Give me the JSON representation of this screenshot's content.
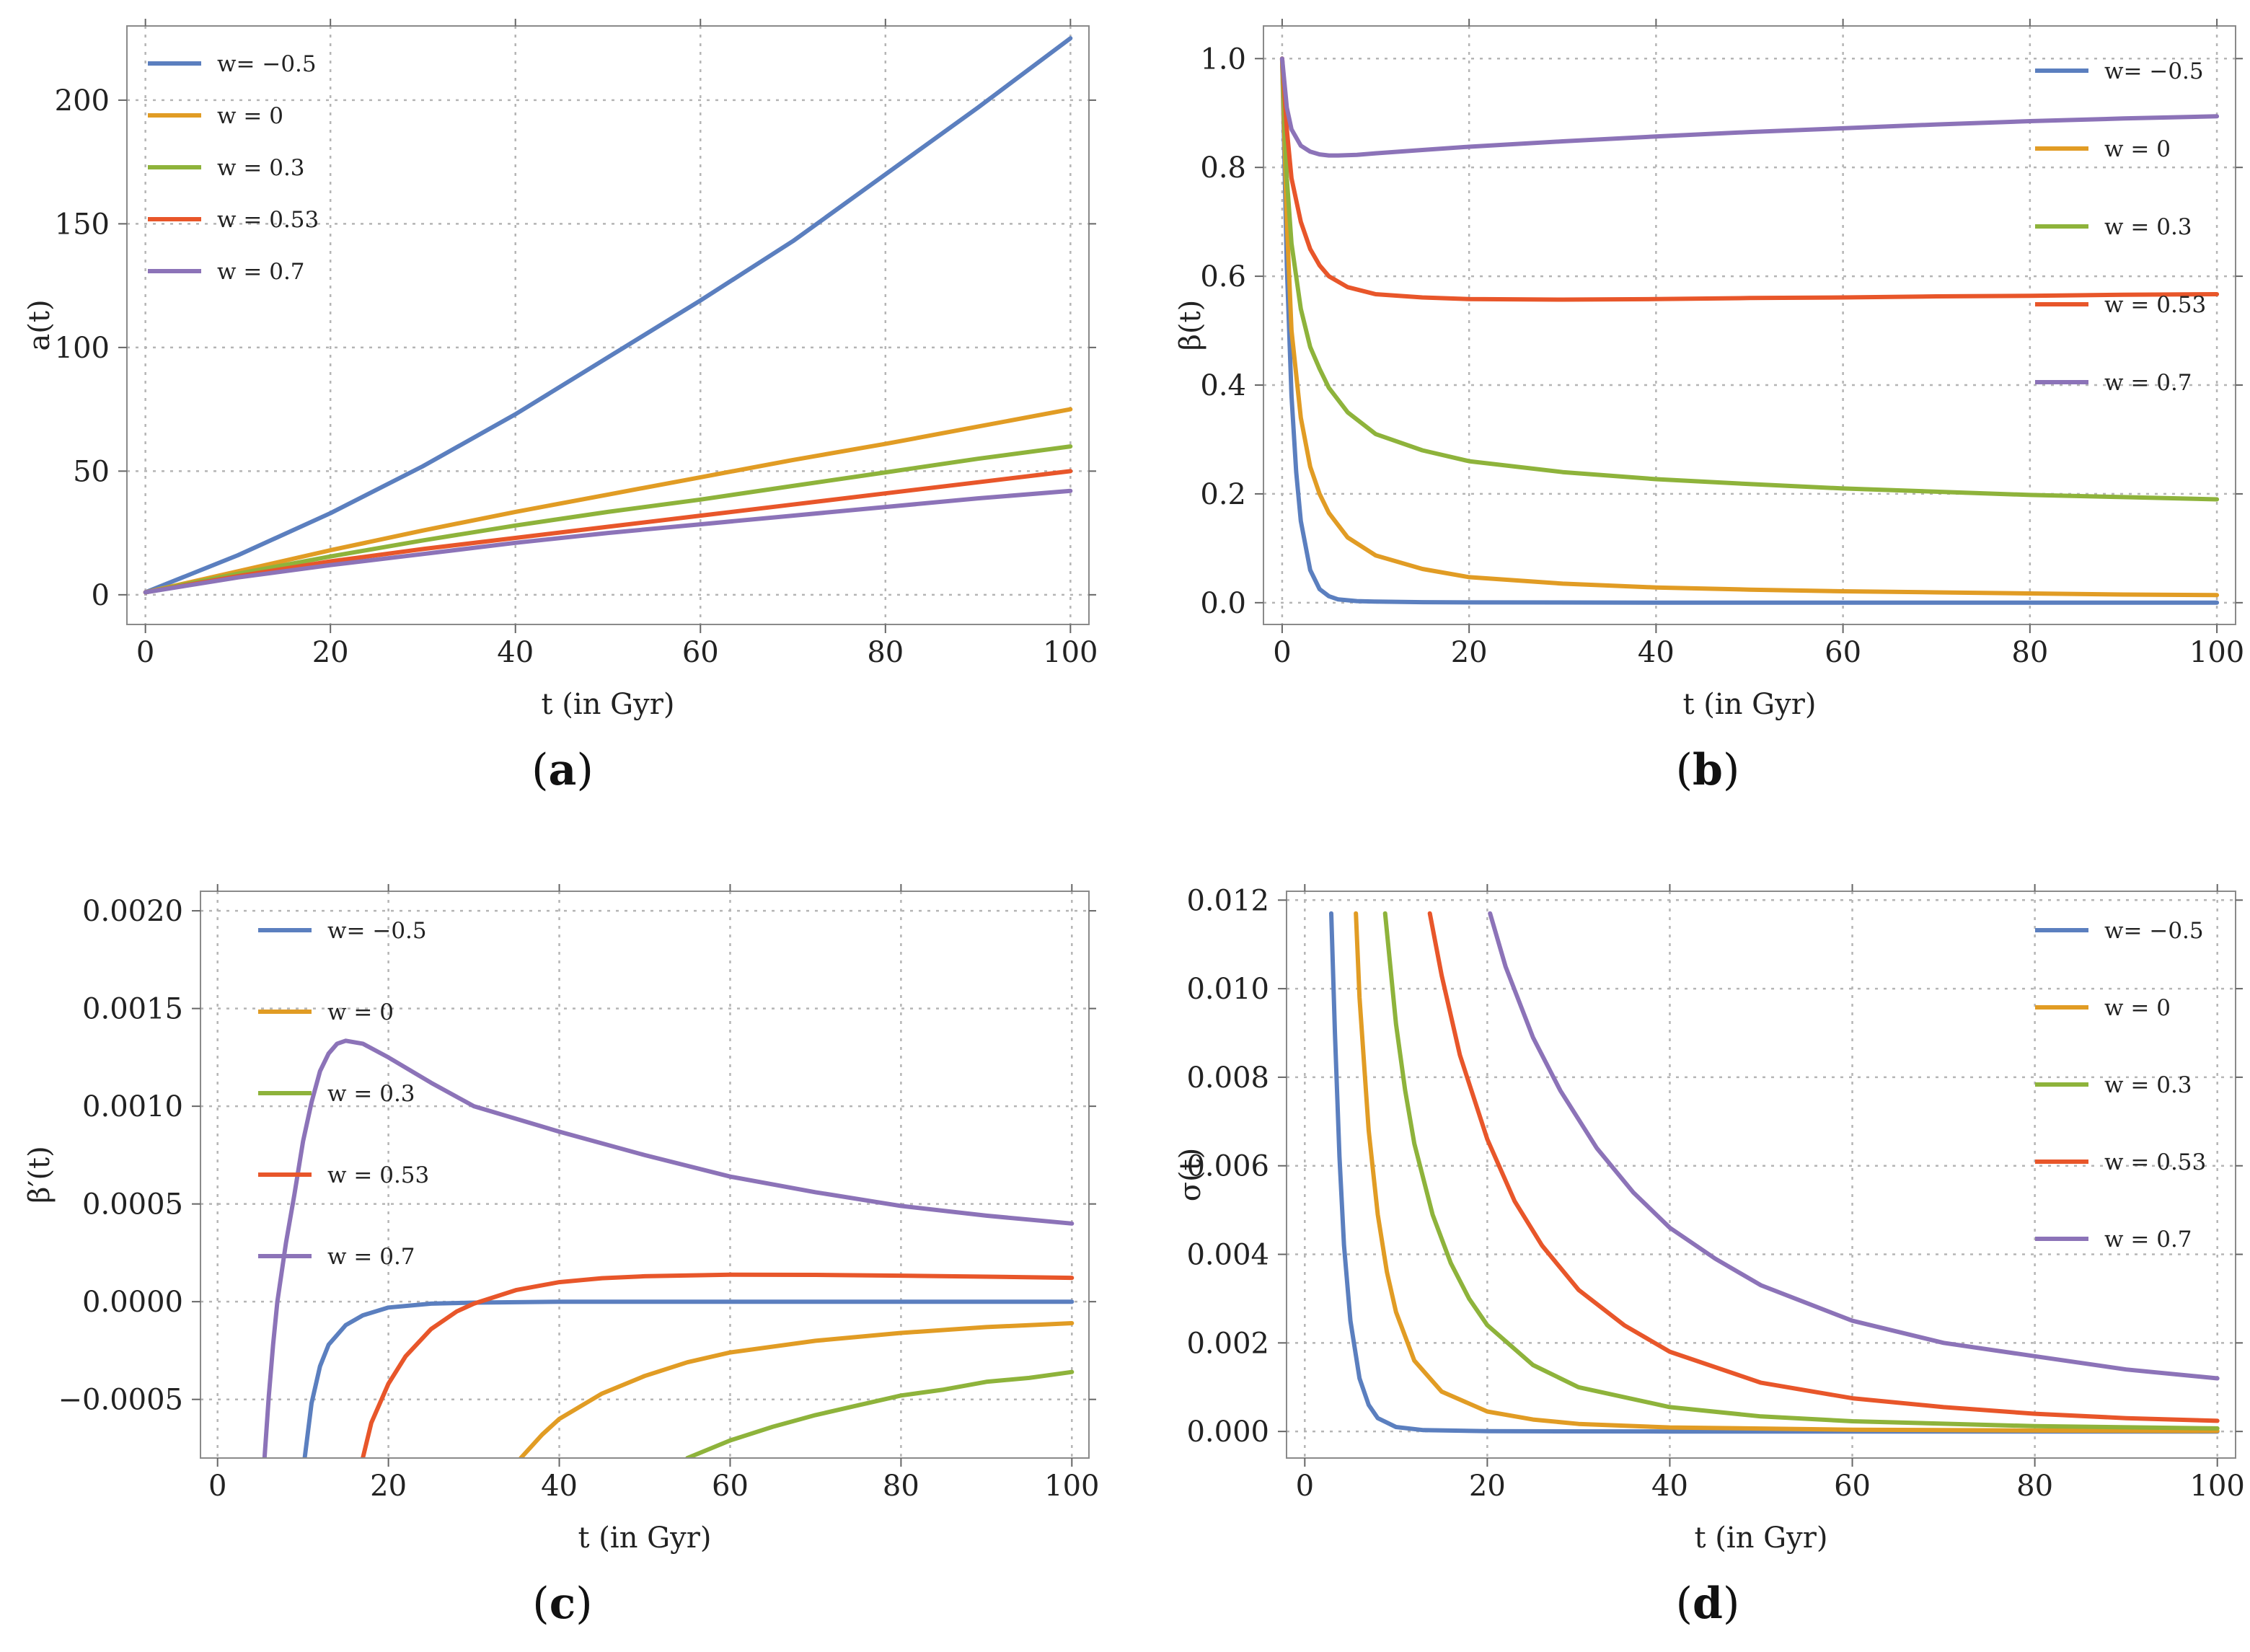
{
  "colors": {
    "blue": "#5B7FBF",
    "orange": "#E19C24",
    "green": "#8EB33B",
    "red": "#E8562A",
    "purple": "#8C73B8"
  },
  "legend_labels": [
    "w= −0.5",
    "w = 0",
    "w = 0.3",
    "w = 0.53",
    "w = 0.7"
  ],
  "chart_data": [
    {
      "id": "a",
      "panel_label": "a",
      "type": "line",
      "xlabel": "t (in Gyr)",
      "ylabel": "a(t)",
      "xlim": [
        -2,
        102
      ],
      "ylim": [
        -12,
        230
      ],
      "xticks": [
        0,
        20,
        40,
        60,
        80,
        100
      ],
      "xtick_labels": [
        "0",
        "20",
        "40",
        "60",
        "80",
        "100"
      ],
      "yticks": [
        0,
        50,
        100,
        150,
        200
      ],
      "ytick_labels": [
        "0",
        "50",
        "100",
        "150",
        "200"
      ],
      "grid": true,
      "legend_position": "top-left",
      "series": [
        {
          "name": "w= −0.5",
          "color": "#5B7FBF",
          "x": [
            0,
            10,
            20,
            30,
            40,
            50,
            60,
            70,
            80,
            90,
            100
          ],
          "y": [
            1,
            16,
            33,
            52,
            73,
            96,
            119,
            143,
            170,
            197,
            225
          ]
        },
        {
          "name": "w = 0",
          "color": "#E19C24",
          "x": [
            0,
            10,
            20,
            30,
            40,
            50,
            60,
            70,
            80,
            90,
            100
          ],
          "y": [
            1,
            9.5,
            18,
            26,
            33.5,
            40.5,
            47.5,
            54.5,
            61,
            68,
            75
          ]
        },
        {
          "name": "w = 0.3",
          "color": "#8EB33B",
          "x": [
            0,
            10,
            20,
            30,
            40,
            50,
            60,
            70,
            80,
            90,
            100
          ],
          "y": [
            1,
            8.5,
            15.5,
            22,
            28,
            33.5,
            38.5,
            44,
            49.5,
            55,
            60
          ]
        },
        {
          "name": "w = 0.53",
          "color": "#E8562A",
          "x": [
            0,
            10,
            20,
            30,
            40,
            50,
            60,
            70,
            80,
            90,
            100
          ],
          "y": [
            1,
            7.5,
            13.5,
            18.5,
            23,
            27.5,
            32,
            36.5,
            41,
            45.5,
            50
          ]
        },
        {
          "name": "w = 0.7",
          "color": "#8C73B8",
          "x": [
            0,
            10,
            20,
            30,
            40,
            50,
            60,
            70,
            80,
            90,
            100
          ],
          "y": [
            1,
            7,
            12,
            16.5,
            21,
            25,
            28.5,
            32,
            35.5,
            39,
            42
          ]
        }
      ]
    },
    {
      "id": "b",
      "panel_label": "b",
      "type": "line",
      "xlabel": "t (in Gyr)",
      "ylabel": "β(t)",
      "xlim": [
        -2,
        102
      ],
      "ylim": [
        -0.04,
        1.06
      ],
      "xticks": [
        0,
        20,
        40,
        60,
        80,
        100
      ],
      "xtick_labels": [
        "0",
        "20",
        "40",
        "60",
        "80",
        "100"
      ],
      "yticks": [
        0,
        0.2,
        0.4,
        0.6,
        0.8,
        1.0
      ],
      "ytick_labels": [
        "0.0",
        "0.2",
        "0.4",
        "0.6",
        "0.8",
        "1.0"
      ],
      "grid": true,
      "legend_position": "right",
      "series": [
        {
          "name": "w= −0.5",
          "color": "#5B7FBF",
          "x": [
            0,
            0.5,
            1,
            1.5,
            2,
            3,
            4,
            5,
            6,
            8,
            10,
            15,
            20,
            40,
            60,
            80,
            100
          ],
          "y": [
            1,
            0.62,
            0.38,
            0.24,
            0.15,
            0.06,
            0.025,
            0.012,
            0.006,
            0.003,
            0.002,
            0.001,
            0.0005,
            0.0002,
            0.0001,
            0.0001,
            0
          ]
        },
        {
          "name": "w = 0",
          "color": "#E19C24",
          "x": [
            0,
            0.5,
            1,
            2,
            3,
            4,
            5,
            7,
            10,
            15,
            20,
            30,
            40,
            50,
            60,
            70,
            80,
            90,
            100
          ],
          "y": [
            1,
            0.7,
            0.5,
            0.34,
            0.25,
            0.2,
            0.165,
            0.12,
            0.087,
            0.062,
            0.047,
            0.035,
            0.028,
            0.024,
            0.021,
            0.019,
            0.017,
            0.015,
            0.014
          ]
        },
        {
          "name": "w = 0.3",
          "color": "#8EB33B",
          "x": [
            0,
            0.5,
            1,
            2,
            3,
            4,
            5,
            7,
            10,
            15,
            20,
            30,
            40,
            50,
            60,
            70,
            80,
            90,
            100
          ],
          "y": [
            1,
            0.78,
            0.66,
            0.54,
            0.47,
            0.43,
            0.395,
            0.35,
            0.31,
            0.28,
            0.26,
            0.24,
            0.227,
            0.218,
            0.21,
            0.204,
            0.198,
            0.194,
            0.19
          ]
        },
        {
          "name": "w = 0.53",
          "color": "#E8562A",
          "x": [
            0,
            0.5,
            1,
            2,
            3,
            4,
            5,
            7,
            10,
            15,
            20,
            30,
            40,
            50,
            60,
            70,
            80,
            90,
            100
          ],
          "y": [
            1,
            0.87,
            0.78,
            0.7,
            0.65,
            0.62,
            0.6,
            0.58,
            0.567,
            0.561,
            0.558,
            0.557,
            0.558,
            0.56,
            0.561,
            0.563,
            0.564,
            0.566,
            0.567
          ]
        },
        {
          "name": "w = 0.7",
          "color": "#8C73B8",
          "x": [
            0,
            0.5,
            1,
            2,
            3,
            4,
            5,
            6,
            8,
            10,
            15,
            20,
            30,
            40,
            50,
            60,
            70,
            80,
            90,
            100
          ],
          "y": [
            1,
            0.91,
            0.87,
            0.84,
            0.829,
            0.824,
            0.822,
            0.822,
            0.823,
            0.826,
            0.832,
            0.838,
            0.848,
            0.857,
            0.865,
            0.872,
            0.879,
            0.885,
            0.89,
            0.894
          ]
        }
      ]
    },
    {
      "id": "c",
      "panel_label": "c",
      "type": "line",
      "xlabel": "t (in Gyr)",
      "ylabel": "β′(t)",
      "xlim": [
        -2,
        102
      ],
      "ylim": [
        -0.0008,
        0.0021
      ],
      "xticks": [
        0,
        20,
        40,
        60,
        80,
        100
      ],
      "xtick_labels": [
        "0",
        "20",
        "40",
        "60",
        "80",
        "100"
      ],
      "yticks": [
        -0.0005,
        0,
        0.0005,
        0.001,
        0.0015,
        0.002
      ],
      "ytick_labels": [
        "−0.0005",
        "0.0000",
        "0.0005",
        "0.0010",
        "0.0015",
        "0.0020"
      ],
      "grid": true,
      "legend_position": "top-left",
      "series": [
        {
          "name": "w= −0.5",
          "color": "#5B7FBF",
          "x": [
            10.2,
            11,
            12,
            13,
            15,
            17,
            20,
            25,
            30,
            40,
            60,
            80,
            100
          ],
          "y": [
            -0.0008,
            -0.00052,
            -0.00033,
            -0.00022,
            -0.00012,
            -7e-05,
            -3e-05,
            -1e-05,
            -5e-06,
            0,
            0,
            0,
            0
          ]
        },
        {
          "name": "w = 0",
          "color": "#E19C24",
          "x": [
            35.5,
            38,
            40,
            45,
            50,
            55,
            60,
            70,
            80,
            90,
            100
          ],
          "y": [
            -0.0008,
            -0.00068,
            -0.0006,
            -0.00047,
            -0.00038,
            -0.00031,
            -0.00026,
            -0.0002,
            -0.00016,
            -0.00013,
            -0.00011
          ]
        },
        {
          "name": "w = 0.3",
          "color": "#8EB33B",
          "x": [
            55,
            60,
            65,
            70,
            75,
            80,
            85,
            90,
            95,
            100
          ],
          "y": [
            -0.0008,
            -0.00071,
            -0.00064,
            -0.00058,
            -0.00053,
            -0.00048,
            -0.00045,
            -0.00041,
            -0.00039,
            -0.00036
          ]
        },
        {
          "name": "w = 0.53",
          "color": "#E8562A",
          "x": [
            17,
            18,
            20,
            22,
            25,
            28,
            30,
            35,
            40,
            45,
            50,
            60,
            70,
            80,
            90,
            100
          ],
          "y": [
            -0.0008,
            -0.00062,
            -0.00042,
            -0.00028,
            -0.00014,
            -5e-05,
            -1e-05,
            6e-05,
            0.0001,
            0.00012,
            0.00013,
            0.000138,
            0.000137,
            0.000133,
            0.000128,
            0.000122
          ]
        },
        {
          "name": "w = 0.7",
          "color": "#8C73B8",
          "x": [
            5.5,
            6,
            6.5,
            7,
            8,
            9,
            10,
            11,
            12,
            13,
            14,
            15,
            17,
            20,
            25,
            30,
            40,
            50,
            60,
            70,
            80,
            90,
            100
          ],
          "y": [
            -0.0008,
            -0.00048,
            -0.00022,
            0,
            0.0003,
            0.00055,
            0.00082,
            0.00102,
            0.00118,
            0.00127,
            0.00132,
            0.001335,
            0.00132,
            0.00125,
            0.00112,
            0.001,
            0.00087,
            0.00075,
            0.00064,
            0.00056,
            0.00049,
            0.00044,
            0.0004
          ]
        }
      ]
    },
    {
      "id": "d",
      "panel_label": "d",
      "type": "line",
      "xlabel": "t (in Gyr)",
      "ylabel": "σ(t)",
      "xlim": [
        -2,
        102
      ],
      "ylim": [
        -0.0006,
        0.0122
      ],
      "xticks": [
        0,
        20,
        40,
        60,
        80,
        100
      ],
      "xtick_labels": [
        "0",
        "20",
        "40",
        "60",
        "80",
        "100"
      ],
      "yticks": [
        0,
        0.002,
        0.004,
        0.006,
        0.008,
        0.01,
        0.012
      ],
      "ytick_labels": [
        "0.000",
        "0.002",
        "0.004",
        "0.006",
        "0.008",
        "0.010",
        "0.012"
      ],
      "grid": true,
      "legend_position": "right",
      "series": [
        {
          "name": "w= −0.5",
          "color": "#5B7FBF",
          "x": [
            2.9,
            3.3,
            3.8,
            4.3,
            5,
            6,
            7,
            8,
            10,
            13,
            20,
            40,
            60,
            100
          ],
          "y": [
            0.0117,
            0.009,
            0.0062,
            0.0042,
            0.0025,
            0.0012,
            0.0006,
            0.0003,
            0.0001,
            3e-05,
            5e-06,
            0,
            0,
            0
          ]
        },
        {
          "name": "w = 0",
          "color": "#E19C24",
          "x": [
            5.6,
            6,
            7,
            8,
            9,
            10,
            12,
            15,
            20,
            25,
            30,
            40,
            60,
            80,
            100
          ],
          "y": [
            0.0117,
            0.0098,
            0.0068,
            0.0049,
            0.0036,
            0.0027,
            0.0016,
            0.0009,
            0.00045,
            0.00027,
            0.00017,
            9e-05,
            4e-05,
            2e-05,
            1e-05
          ]
        },
        {
          "name": "w = 0.3",
          "color": "#8EB33B",
          "x": [
            8.8,
            10,
            11,
            12,
            14,
            16,
            18,
            20,
            25,
            30,
            40,
            50,
            60,
            80,
            100
          ],
          "y": [
            0.0117,
            0.0092,
            0.0077,
            0.0065,
            0.0049,
            0.0038,
            0.003,
            0.0024,
            0.0015,
            0.001,
            0.00055,
            0.00034,
            0.00023,
            0.00012,
            7e-05
          ]
        },
        {
          "name": "w = 0.53",
          "color": "#E8562A",
          "x": [
            13.7,
            15,
            17,
            20,
            23,
            26,
            30,
            35,
            40,
            50,
            60,
            70,
            80,
            90,
            100
          ],
          "y": [
            0.0117,
            0.0103,
            0.0085,
            0.0066,
            0.0052,
            0.0042,
            0.0032,
            0.0024,
            0.0018,
            0.0011,
            0.00075,
            0.00055,
            0.0004,
            0.0003,
            0.00024
          ]
        },
        {
          "name": "w = 0.7",
          "color": "#8C73B8",
          "x": [
            20.3,
            22,
            25,
            28,
            32,
            36,
            40,
            45,
            50,
            55,
            60,
            70,
            80,
            90,
            100
          ],
          "y": [
            0.0117,
            0.0105,
            0.0089,
            0.0077,
            0.0064,
            0.0054,
            0.0046,
            0.0039,
            0.0033,
            0.0029,
            0.0025,
            0.002,
            0.0017,
            0.0014,
            0.0012
          ]
        }
      ]
    }
  ]
}
